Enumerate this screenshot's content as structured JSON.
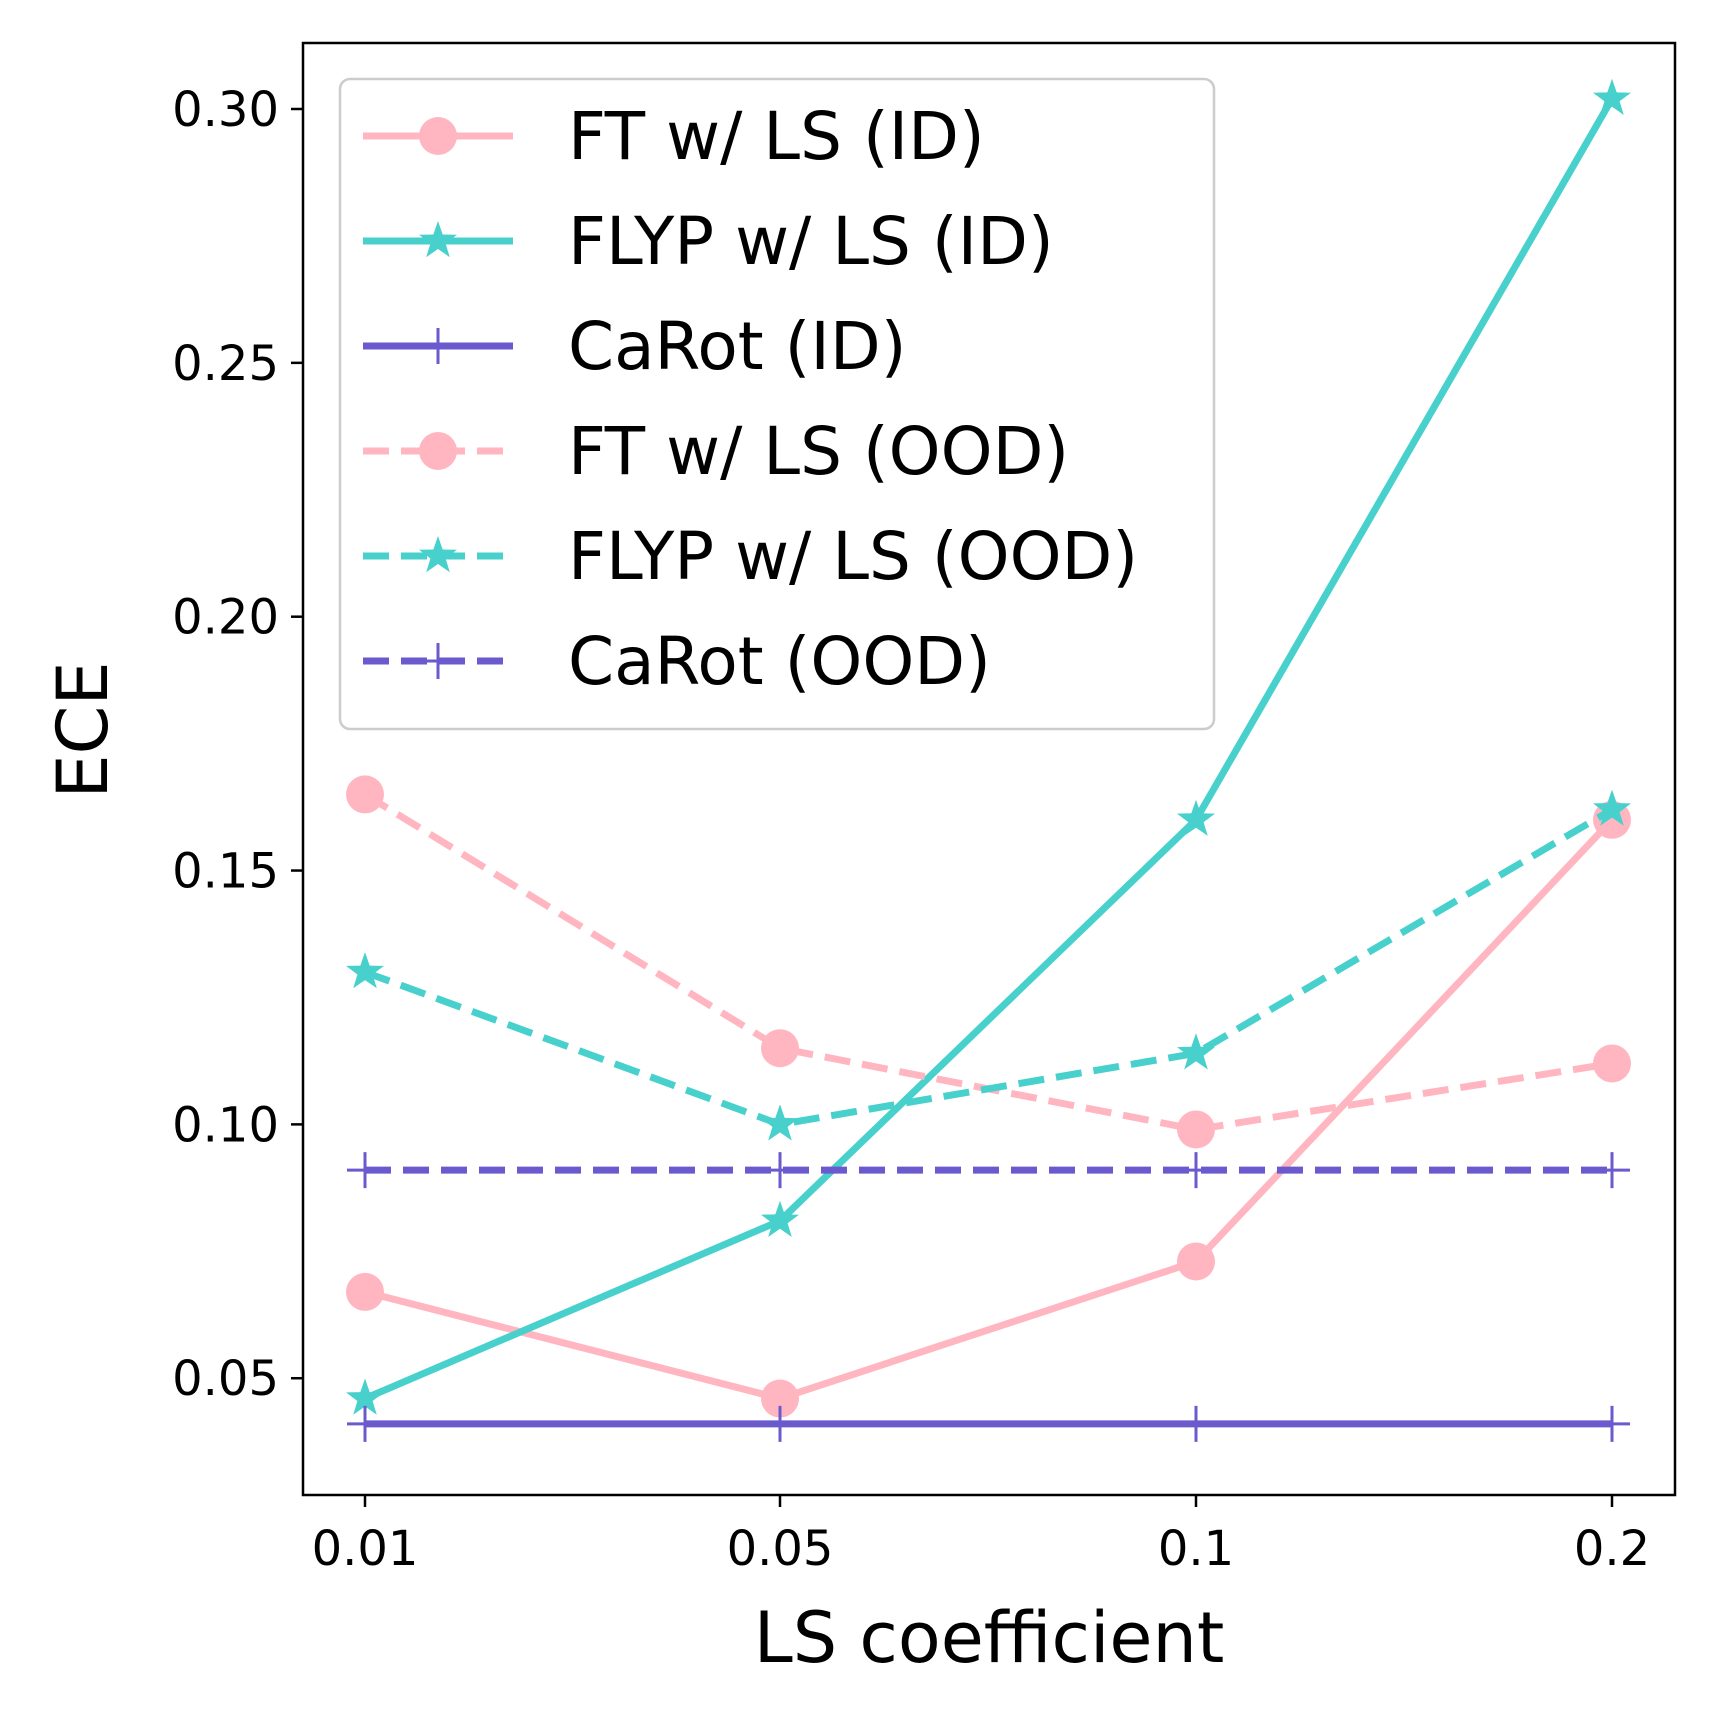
{
  "chart_data": {
    "type": "line",
    "title": "",
    "xlabel": "LS coefficient",
    "ylabel": "ECE",
    "categories": [
      "0.01",
      "0.05",
      "0.1",
      "0.2"
    ],
    "ylim": [
      0.027,
      0.313
    ],
    "yticks": [
      0.05,
      0.1,
      0.15,
      0.2,
      0.25,
      0.3
    ],
    "ytick_labels": [
      "0.05",
      "0.10",
      "0.15",
      "0.20",
      "0.25",
      "0.30"
    ],
    "grid": false,
    "legend_position": "upper-left",
    "series": [
      {
        "name": "FT w/ LS (ID)",
        "values": [
          0.067,
          0.046,
          0.073,
          0.16
        ],
        "color": "#ffb6c1",
        "linestyle": "solid",
        "marker": "circle"
      },
      {
        "name": "FLYP w/ LS (ID)",
        "values": [
          0.046,
          0.081,
          0.16,
          0.302
        ],
        "color": "#48d1cc",
        "linestyle": "solid",
        "marker": "star"
      },
      {
        "name": "CaRot (ID)",
        "values": [
          0.041,
          0.041,
          0.041,
          0.041
        ],
        "color": "#6a5acd",
        "linestyle": "solid",
        "marker": "plus"
      },
      {
        "name": "FT w/ LS (OOD)",
        "values": [
          0.165,
          0.115,
          0.099,
          0.112
        ],
        "color": "#ffb6c1",
        "linestyle": "dashed",
        "marker": "circle"
      },
      {
        "name": "FLYP w/ LS (OOD)",
        "values": [
          0.13,
          0.1,
          0.114,
          0.162
        ],
        "color": "#48d1cc",
        "linestyle": "dashed",
        "marker": "star"
      },
      {
        "name": "CaRot (OOD)",
        "values": [
          0.091,
          0.091,
          0.091,
          0.091
        ],
        "color": "#6a5acd",
        "linestyle": "dashed",
        "marker": "plus"
      }
    ]
  }
}
